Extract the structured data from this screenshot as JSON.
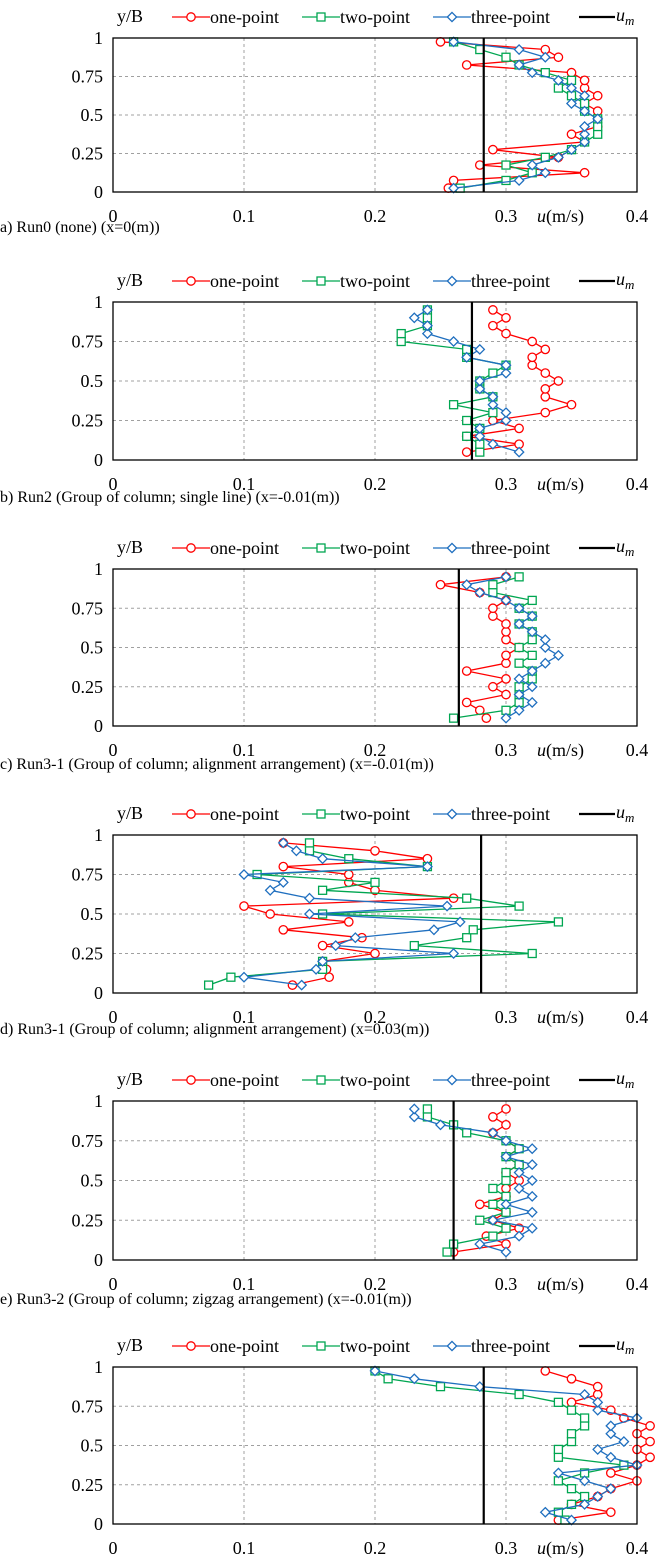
{
  "colors": {
    "one_point": "#ff0000",
    "two_point": "#00a651",
    "three_point": "#1f6fbf",
    "mean_line": "#000000",
    "grid": "#a0a0a0"
  },
  "legend": {
    "one_point": "one-point",
    "two_point": "two-point",
    "three_point": "three-point",
    "mean": "u",
    "mean_symbol": "u",
    "mean_sub": "m"
  },
  "chart_data": [
    {
      "type": "line",
      "caption": "a) Run0 (none) (x=0(m))",
      "ylabel": "y/B",
      "xlabel": "u(m/s)",
      "xlim": [
        0,
        0.4
      ],
      "ylim": [
        0,
        1
      ],
      "xticks": [
        "0",
        "0.1",
        "0.2",
        "0.3",
        "0.4"
      ],
      "yticks": [
        "0",
        "0.25",
        "0.5",
        "0.75",
        "1"
      ],
      "grid": true,
      "legend_position": "top",
      "um": 0.283,
      "series": [
        {
          "name": "one-point",
          "y": [
            0.025,
            0.075,
            0.125,
            0.175,
            0.225,
            0.275,
            0.325,
            0.375,
            0.425,
            0.475,
            0.525,
            0.575,
            0.625,
            0.675,
            0.725,
            0.775,
            0.825,
            0.875,
            0.925,
            0.975
          ],
          "x": [
            0.256,
            0.26,
            0.36,
            0.28,
            0.34,
            0.29,
            0.36,
            0.35,
            0.37,
            0.37,
            0.37,
            0.36,
            0.37,
            0.36,
            0.36,
            0.35,
            0.27,
            0.34,
            0.33,
            0.25
          ]
        },
        {
          "name": "two-point",
          "y": [
            0.025,
            0.075,
            0.125,
            0.175,
            0.225,
            0.275,
            0.325,
            0.375,
            0.425,
            0.475,
            0.525,
            0.575,
            0.625,
            0.675,
            0.725,
            0.775,
            0.825,
            0.875,
            0.925,
            0.975
          ],
          "x": [
            0.265,
            0.3,
            0.32,
            0.3,
            0.33,
            0.35,
            0.36,
            0.37,
            0.37,
            0.37,
            0.36,
            0.36,
            0.35,
            0.34,
            0.35,
            0.33,
            0.31,
            0.3,
            0.28,
            0.26
          ]
        },
        {
          "name": "three-point",
          "y": [
            0.025,
            0.075,
            0.125,
            0.175,
            0.225,
            0.275,
            0.325,
            0.375,
            0.425,
            0.475,
            0.525,
            0.575,
            0.625,
            0.675,
            0.725,
            0.775,
            0.825,
            0.875,
            0.925,
            0.975
          ],
          "x": [
            0.26,
            0.31,
            0.33,
            0.32,
            0.34,
            0.35,
            0.36,
            0.36,
            0.36,
            0.37,
            0.36,
            0.35,
            0.36,
            0.35,
            0.34,
            0.32,
            0.31,
            0.33,
            0.31,
            0.26
          ]
        }
      ]
    },
    {
      "type": "line",
      "caption": "b) Run2 (Group of column; single line) (x=-0.01(m))",
      "ylabel": "y/B",
      "xlabel": "u(m/s)",
      "xlim": [
        0,
        0.4
      ],
      "ylim": [
        0,
        1
      ],
      "xticks": [
        "0",
        "0.1",
        "0.2",
        "0.3",
        "0.4"
      ],
      "yticks": [
        "0",
        "0.25",
        "0.5",
        "0.75",
        "1"
      ],
      "grid": true,
      "legend_position": "top",
      "um": 0.274,
      "series": [
        {
          "name": "one-point",
          "y": [
            0.05,
            0.1,
            0.15,
            0.2,
            0.25,
            0.3,
            0.35,
            0.4,
            0.45,
            0.5,
            0.55,
            0.6,
            0.65,
            0.7,
            0.75,
            0.8,
            0.85,
            0.9,
            0.95
          ],
          "x": [
            0.27,
            0.31,
            0.27,
            0.31,
            0.29,
            0.33,
            0.35,
            0.33,
            0.33,
            0.34,
            0.33,
            0.32,
            0.32,
            0.33,
            0.32,
            0.3,
            0.29,
            0.3,
            0.29
          ]
        },
        {
          "name": "two-point",
          "y": [
            0.05,
            0.1,
            0.15,
            0.2,
            0.25,
            0.3,
            0.35,
            0.4,
            0.45,
            0.5,
            0.55,
            0.6,
            0.65,
            0.7,
            0.75,
            0.8,
            0.85,
            0.9,
            0.95
          ],
          "x": [
            0.28,
            0.28,
            0.27,
            0.28,
            0.27,
            0.29,
            0.26,
            0.29,
            0.28,
            0.28,
            0.29,
            0.3,
            0.27,
            0.27,
            0.22,
            0.22,
            0.24,
            0.24,
            0.24
          ]
        },
        {
          "name": "three-point",
          "y": [
            0.05,
            0.1,
            0.15,
            0.2,
            0.25,
            0.3,
            0.35,
            0.4,
            0.45,
            0.5,
            0.55,
            0.6,
            0.65,
            0.7,
            0.75,
            0.8,
            0.85,
            0.9,
            0.95
          ],
          "x": [
            0.31,
            0.29,
            0.28,
            0.28,
            0.3,
            0.3,
            0.29,
            0.29,
            0.28,
            0.28,
            0.3,
            0.3,
            0.27,
            0.28,
            0.26,
            0.24,
            0.24,
            0.23,
            0.24
          ]
        }
      ]
    },
    {
      "type": "line",
      "caption": "c) Run3-1 (Group of column; alignment arrangement) (x=-0.01(m))",
      "ylabel": "y/B",
      "xlabel": "u(m/s)",
      "xlim": [
        0,
        0.4
      ],
      "ylim": [
        0,
        1
      ],
      "xticks": [
        "0",
        "0.1",
        "0.2",
        "0.3",
        "0.4"
      ],
      "yticks": [
        "0",
        "0.25",
        "0.5",
        "0.75",
        "1"
      ],
      "grid": true,
      "legend_position": "top",
      "um": 0.264,
      "series": [
        {
          "name": "one-point",
          "y": [
            0.05,
            0.1,
            0.15,
            0.2,
            0.25,
            0.3,
            0.35,
            0.4,
            0.45,
            0.5,
            0.55,
            0.6,
            0.65,
            0.7,
            0.75,
            0.8,
            0.85,
            0.9,
            0.95
          ],
          "x": [
            0.285,
            0.28,
            0.27,
            0.3,
            0.29,
            0.3,
            0.27,
            0.3,
            0.3,
            0.31,
            0.3,
            0.3,
            0.3,
            0.29,
            0.29,
            0.3,
            0.28,
            0.25,
            0.3
          ]
        },
        {
          "name": "two-point",
          "y": [
            0.05,
            0.1,
            0.15,
            0.2,
            0.25,
            0.3,
            0.35,
            0.4,
            0.45,
            0.5,
            0.55,
            0.6,
            0.65,
            0.7,
            0.75,
            0.8,
            0.85,
            0.9,
            0.95
          ],
          "x": [
            0.26,
            0.3,
            0.31,
            0.31,
            0.31,
            0.32,
            0.32,
            0.31,
            0.32,
            0.31,
            0.32,
            0.32,
            0.31,
            0.32,
            0.31,
            0.32,
            0.29,
            0.29,
            0.31
          ]
        },
        {
          "name": "three-point",
          "y": [
            0.05,
            0.1,
            0.15,
            0.2,
            0.25,
            0.3,
            0.35,
            0.4,
            0.45,
            0.5,
            0.55,
            0.6,
            0.65,
            0.7,
            0.75,
            0.8,
            0.85,
            0.9,
            0.95
          ],
          "x": [
            0.3,
            0.31,
            0.32,
            0.31,
            0.32,
            0.31,
            0.32,
            0.33,
            0.34,
            0.33,
            0.33,
            0.32,
            0.31,
            0.32,
            0.31,
            0.3,
            0.28,
            0.27,
            0.3
          ]
        }
      ]
    },
    {
      "type": "line",
      "caption": "d) Run3-1 (Group of column; alignment arrangement) (x=0.03(m))",
      "ylabel": "y/B",
      "xlabel": "u(m/s)",
      "xlim": [
        0,
        0.4
      ],
      "ylim": [
        0,
        1
      ],
      "xticks": [
        "0",
        "0.1",
        "0.2",
        "0.3",
        "0.4"
      ],
      "yticks": [
        "0",
        "0.25",
        "0.5",
        "0.75",
        "1"
      ],
      "grid": true,
      "legend_position": "top",
      "um": 0.281,
      "series": [
        {
          "name": "one-point",
          "y": [
            0.05,
            0.1,
            0.15,
            0.2,
            0.25,
            0.3,
            0.35,
            0.4,
            0.45,
            0.5,
            0.55,
            0.6,
            0.65,
            0.7,
            0.75,
            0.8,
            0.85,
            0.9,
            0.95
          ],
          "x": [
            0.137,
            0.165,
            0.163,
            0.16,
            0.2,
            0.16,
            0.19,
            0.13,
            0.18,
            0.12,
            0.1,
            0.26,
            0.2,
            0.18,
            0.18,
            0.13,
            0.24,
            0.2,
            0.13
          ]
        },
        {
          "name": "two-point",
          "y": [
            0.05,
            0.1,
            0.15,
            0.2,
            0.25,
            0.3,
            0.35,
            0.4,
            0.45,
            0.5,
            0.55,
            0.6,
            0.65,
            0.7,
            0.75,
            0.8,
            0.85,
            0.9,
            0.95
          ],
          "x": [
            0.073,
            0.09,
            0.16,
            0.16,
            0.32,
            0.23,
            0.27,
            0.275,
            0.34,
            0.16,
            0.31,
            0.27,
            0.16,
            0.2,
            0.11,
            0.24,
            0.18,
            0.15,
            0.15
          ]
        },
        {
          "name": "three-point",
          "y": [
            0.05,
            0.1,
            0.15,
            0.2,
            0.25,
            0.3,
            0.35,
            0.4,
            0.45,
            0.5,
            0.55,
            0.6,
            0.65,
            0.7,
            0.75,
            0.8,
            0.85,
            0.9,
            0.95
          ],
          "x": [
            0.144,
            0.1,
            0.155,
            0.16,
            0.26,
            0.17,
            0.185,
            0.245,
            0.265,
            0.15,
            0.255,
            0.15,
            0.12,
            0.13,
            0.1,
            0.24,
            0.16,
            0.14,
            0.13
          ]
        }
      ]
    },
    {
      "type": "line",
      "caption": "e) Run3-2 (Group of column; zigzag arrangement) (x=-0.01(m))",
      "ylabel": "y/B",
      "xlabel": "u(m/s)",
      "xlim": [
        0,
        0.4
      ],
      "ylim": [
        0,
        1
      ],
      "xticks": [
        "0",
        "0.1",
        "0.2",
        "0.3",
        "0.4"
      ],
      "yticks": [
        "0",
        "0.25",
        "0.5",
        "0.75",
        "1"
      ],
      "grid": true,
      "legend_position": "top",
      "um": 0.26,
      "series": [
        {
          "name": "one-point",
          "y": [
            0.05,
            0.1,
            0.15,
            0.2,
            0.25,
            0.3,
            0.35,
            0.4,
            0.45,
            0.5,
            0.55,
            0.6,
            0.65,
            0.7,
            0.75,
            0.8,
            0.85,
            0.9,
            0.95
          ],
          "x": [
            0.26,
            0.3,
            0.285,
            0.31,
            0.29,
            0.3,
            0.28,
            0.3,
            0.3,
            0.31,
            0.3,
            0.31,
            0.3,
            0.31,
            0.3,
            0.29,
            0.3,
            0.29,
            0.3
          ]
        },
        {
          "name": "two-point",
          "y": [
            0.05,
            0.1,
            0.15,
            0.2,
            0.25,
            0.3,
            0.35,
            0.4,
            0.45,
            0.5,
            0.55,
            0.6,
            0.65,
            0.7,
            0.75,
            0.8,
            0.85,
            0.9,
            0.95
          ],
          "x": [
            0.255,
            0.26,
            0.29,
            0.3,
            0.28,
            0.3,
            0.29,
            0.3,
            0.29,
            0.3,
            0.3,
            0.31,
            0.3,
            0.31,
            0.3,
            0.27,
            0.26,
            0.24,
            0.24
          ]
        },
        {
          "name": "three-point",
          "y": [
            0.05,
            0.1,
            0.15,
            0.2,
            0.25,
            0.3,
            0.35,
            0.4,
            0.45,
            0.5,
            0.55,
            0.6,
            0.65,
            0.7,
            0.75,
            0.8,
            0.85,
            0.9,
            0.95
          ],
          "x": [
            0.3,
            0.28,
            0.31,
            0.32,
            0.29,
            0.32,
            0.3,
            0.32,
            0.31,
            0.32,
            0.31,
            0.32,
            0.3,
            0.32,
            0.3,
            0.29,
            0.25,
            0.23,
            0.23
          ]
        }
      ]
    },
    {
      "type": "line",
      "caption": "",
      "ylabel": "y/B",
      "xlabel": "u(m/s)",
      "xlim": [
        0,
        0.4
      ],
      "ylim": [
        0,
        1
      ],
      "xticks": [
        "0",
        "0.1",
        "0.2",
        "0.3",
        "0.4"
      ],
      "yticks": [
        "0",
        "0.25",
        "0.5",
        "0.75",
        "1"
      ],
      "grid": true,
      "legend_position": "top",
      "um": 0.283,
      "series": [
        {
          "name": "one-point",
          "y": [
            0.025,
            0.075,
            0.125,
            0.175,
            0.225,
            0.275,
            0.325,
            0.375,
            0.425,
            0.475,
            0.525,
            0.575,
            0.625,
            0.675,
            0.725,
            0.775,
            0.825,
            0.875,
            0.925,
            0.975
          ],
          "x": [
            0.34,
            0.38,
            0.35,
            0.37,
            0.38,
            0.4,
            0.38,
            0.4,
            0.41,
            0.4,
            0.41,
            0.4,
            0.41,
            0.39,
            0.38,
            0.35,
            0.37,
            0.37,
            0.35,
            0.33
          ]
        },
        {
          "name": "two-point",
          "y": [
            0.025,
            0.075,
            0.125,
            0.175,
            0.225,
            0.275,
            0.325,
            0.375,
            0.425,
            0.475,
            0.525,
            0.575,
            0.625,
            0.675,
            0.725,
            0.775,
            0.825,
            0.875,
            0.925,
            0.975
          ],
          "x": [
            0.345,
            0.34,
            0.35,
            0.36,
            0.35,
            0.34,
            0.36,
            0.39,
            0.34,
            0.34,
            0.35,
            0.35,
            0.36,
            0.36,
            0.35,
            0.34,
            0.31,
            0.25,
            0.21,
            0.2
          ]
        },
        {
          "name": "three-point",
          "y": [
            0.025,
            0.075,
            0.125,
            0.175,
            0.225,
            0.275,
            0.325,
            0.375,
            0.425,
            0.475,
            0.525,
            0.575,
            0.625,
            0.675,
            0.725,
            0.775,
            0.825,
            0.875,
            0.925,
            0.975
          ],
          "x": [
            0.35,
            0.33,
            0.36,
            0.37,
            0.38,
            0.36,
            0.34,
            0.4,
            0.38,
            0.37,
            0.39,
            0.38,
            0.38,
            0.4,
            0.37,
            0.37,
            0.36,
            0.28,
            0.23,
            0.2
          ]
        }
      ]
    }
  ]
}
